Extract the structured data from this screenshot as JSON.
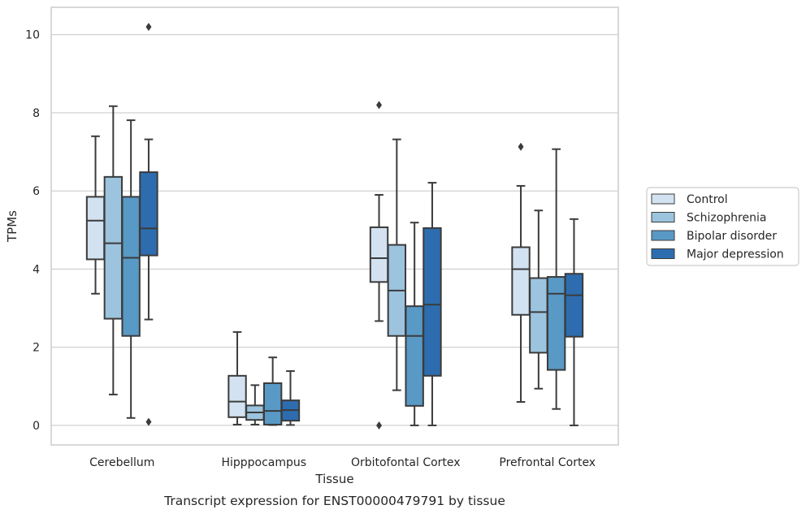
{
  "chart_data": {
    "type": "boxplot",
    "title": "Transcript expression for ENST00000479791 by tissue",
    "xlabel": "Tissue",
    "ylabel": "TPMs",
    "ylim": [
      -0.5,
      10.7
    ],
    "yticks": [
      0,
      2,
      4,
      6,
      8,
      10
    ],
    "grid": "horizontal",
    "legend_position": "right",
    "categories": [
      "Cerebellum",
      "Hipppocampus",
      "Orbitofontal Cortex",
      "Prefrontal Cortex"
    ],
    "series": [
      {
        "name": "Control",
        "color": "#d2e2f1",
        "boxes": [
          {
            "whisker_low": 3.37,
            "q1": 4.25,
            "median": 5.24,
            "q3": 5.85,
            "whisker_high": 7.4,
            "outliers": []
          },
          {
            "whisker_low": 0.02,
            "q1": 0.21,
            "median": 0.61,
            "q3": 1.27,
            "whisker_high": 2.39,
            "outliers": []
          },
          {
            "whisker_low": 2.67,
            "q1": 3.67,
            "median": 4.28,
            "q3": 5.07,
            "whisker_high": 5.9,
            "outliers": [
              8.2,
              0.0
            ]
          },
          {
            "whisker_low": 0.6,
            "q1": 2.83,
            "median": 4.0,
            "q3": 4.56,
            "whisker_high": 6.13,
            "outliers": [
              7.13
            ]
          }
        ]
      },
      {
        "name": "Schizophrenia",
        "color": "#9cc4de",
        "boxes": [
          {
            "whisker_low": 0.79,
            "q1": 2.73,
            "median": 4.66,
            "q3": 6.36,
            "whisker_high": 8.17,
            "outliers": []
          },
          {
            "whisker_low": 0.02,
            "q1": 0.14,
            "median": 0.33,
            "q3": 0.51,
            "whisker_high": 1.03,
            "outliers": []
          },
          {
            "whisker_low": 0.9,
            "q1": 2.29,
            "median": 3.45,
            "q3": 4.62,
            "whisker_high": 7.32,
            "outliers": []
          },
          {
            "whisker_low": 0.94,
            "q1": 1.86,
            "median": 2.9,
            "q3": 3.77,
            "whisker_high": 5.5,
            "outliers": []
          }
        ]
      },
      {
        "name": "Bipolar disorder",
        "color": "#5899c6",
        "boxes": [
          {
            "whisker_low": 0.19,
            "q1": 2.29,
            "median": 4.29,
            "q3": 5.85,
            "whisker_high": 7.81,
            "outliers": []
          },
          {
            "whisker_low": 0.01,
            "q1": 0.02,
            "median": 0.37,
            "q3": 1.08,
            "whisker_high": 1.74,
            "outliers": []
          },
          {
            "whisker_low": 0.0,
            "q1": 0.5,
            "median": 2.29,
            "q3": 3.05,
            "whisker_high": 5.19,
            "outliers": []
          },
          {
            "whisker_low": 0.42,
            "q1": 1.42,
            "median": 3.37,
            "q3": 3.8,
            "whisker_high": 7.07,
            "outliers": []
          }
        ]
      },
      {
        "name": "Major depression",
        "color": "#2d6daf",
        "boxes": [
          {
            "whisker_low": 2.71,
            "q1": 4.35,
            "median": 5.04,
            "q3": 6.48,
            "whisker_high": 7.32,
            "outliers": [
              10.2,
              0.09
            ]
          },
          {
            "whisker_low": 0.01,
            "q1": 0.12,
            "median": 0.39,
            "q3": 0.64,
            "whisker_high": 1.39,
            "outliers": []
          },
          {
            "whisker_low": 0.0,
            "q1": 1.27,
            "median": 3.09,
            "q3": 5.05,
            "whisker_high": 6.21,
            "outliers": []
          },
          {
            "whisker_low": 0.0,
            "q1": 2.27,
            "median": 3.33,
            "q3": 3.88,
            "whisker_high": 5.28,
            "outliers": []
          }
        ]
      }
    ]
  }
}
